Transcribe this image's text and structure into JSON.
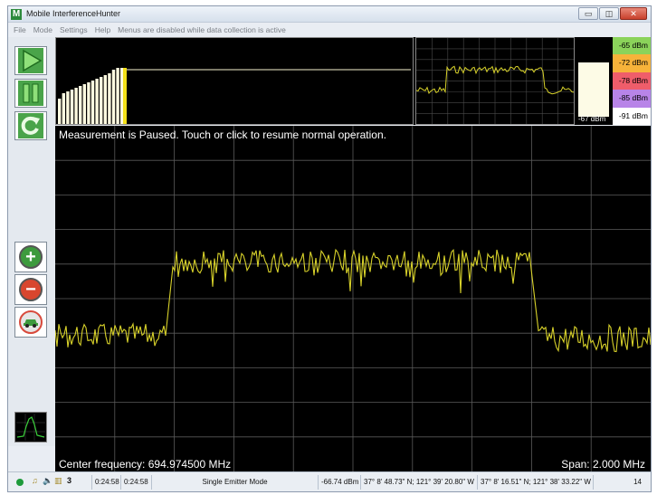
{
  "window": {
    "title": "Mobile InterferenceHunter",
    "app_icon_glyph": "M",
    "minimize_glyph": "▭",
    "restore_glyph": "◫",
    "close_glyph": "✕"
  },
  "menu": {
    "items": [
      "File",
      "Mode",
      "Settings",
      "Help"
    ],
    "notice": "Menus are disabled while data collection is active"
  },
  "colorbar": {
    "levels": [
      "-65 dBm",
      "-72 dBm",
      "-78 dBm",
      "-85 dBm",
      "-91 dBm"
    ],
    "colors": [
      "#8bd35a",
      "#f7b33a",
      "#ef5d6a",
      "#b884e8",
      "#ffffff"
    ],
    "current_label": "-67 dBm"
  },
  "main": {
    "message": "Measurement is Paused.  Touch or click to resume normal operation.",
    "center_frequency": "Center frequency: 694.974500 MHz",
    "span": "Span: 2.000 MHz",
    "trace_color": "#d8d22a",
    "grid_color": "#5a5a5a"
  },
  "status": {
    "time1": "0:24:58",
    "time2": "0:24:58",
    "mode": "Single Emitter Mode",
    "level": "-66.74 dBm",
    "position1": "37° 8' 48.73\" N; 121° 39' 20.80\" W",
    "position2": "37° 8' 16.51\" N; 121° 38' 33.22\" W",
    "count_left": "3",
    "count_right": "14"
  },
  "icons": {
    "play": "play-icon",
    "pause": "pause-icon",
    "refresh": "refresh-icon",
    "zoom_in": "zoom-in-icon",
    "zoom_out": "zoom-out-icon",
    "vehicle": "car-icon"
  }
}
